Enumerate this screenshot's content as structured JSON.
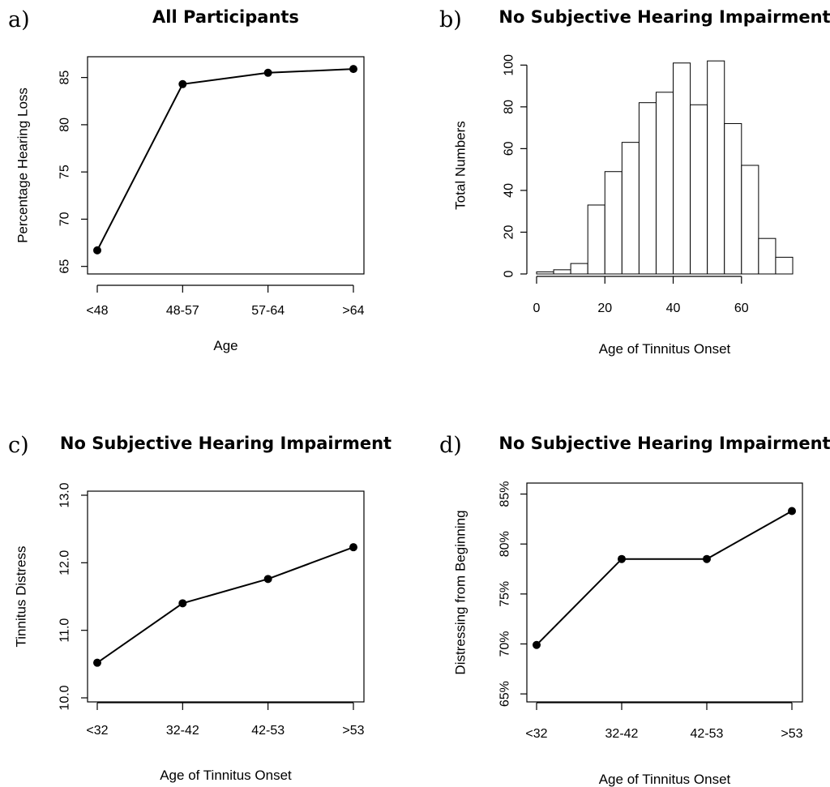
{
  "chart_data": [
    {
      "panel_label": "a)",
      "type": "line",
      "title": "All Participants",
      "xlabel": "Age",
      "ylabel": "Percentage Hearing Loss",
      "categories": [
        "<48",
        "48-57",
        "57-64",
        ">64"
      ],
      "values": [
        66.7,
        84.3,
        85.5,
        85.9
      ],
      "ylim": [
        64.2,
        87.2
      ],
      "yticks": [
        65,
        70,
        75,
        80,
        85
      ],
      "ytick_labels": [
        "65",
        "70",
        "75",
        "80",
        "85"
      ],
      "grid": false
    },
    {
      "panel_label": "b)",
      "type": "bar",
      "subtype": "histogram",
      "title": "No Subjective Hearing Impairment",
      "xlabel": "Age of Tinnitus Onset",
      "ylabel": "Total Numbers",
      "bin_edges": [
        0,
        5,
        10,
        15,
        20,
        25,
        30,
        35,
        40,
        45,
        50,
        55,
        60,
        65,
        70,
        75
      ],
      "values": [
        1,
        2,
        5,
        33,
        49,
        63,
        82,
        87,
        101,
        81,
        102,
        72,
        52,
        17,
        8
      ],
      "xlim": [
        0,
        75
      ],
      "ylim": [
        0,
        104
      ],
      "xticks": [
        0,
        20,
        40,
        60
      ],
      "xtick_labels": [
        "0",
        "20",
        "40",
        "60"
      ],
      "yticks": [
        0,
        20,
        40,
        60,
        80,
        100
      ],
      "ytick_labels": [
        "0",
        "20",
        "40",
        "60",
        "80",
        "100"
      ],
      "grid": false
    },
    {
      "panel_label": "c)",
      "type": "line",
      "title": "No Subjective Hearing Impairment",
      "xlabel": "Age of Tinnitus Onset",
      "ylabel": "Tinnitus Distress",
      "categories": [
        "<32",
        "32-42",
        "42-53",
        ">53"
      ],
      "values": [
        10.52,
        11.4,
        11.76,
        12.23
      ],
      "ylim": [
        9.94,
        13.06
      ],
      "yticks": [
        10,
        11,
        12,
        13
      ],
      "ytick_labels": [
        "10.0",
        "11.0",
        "12.0",
        "13.0"
      ],
      "grid": false
    },
    {
      "panel_label": "d)",
      "type": "line",
      "title": "No Subjective Hearing Impairment",
      "xlabel": "Age of Tinnitus Onset",
      "ylabel": "Distressing from Beginning",
      "categories": [
        "<32",
        "32-42",
        "42-53",
        ">53"
      ],
      "values": [
        69.9,
        78.5,
        78.5,
        83.3
      ],
      "ylim": [
        64.2,
        86.1
      ],
      "yticks": [
        65,
        70,
        75,
        80,
        85
      ],
      "ytick_labels": [
        "65%",
        "70%",
        "75%",
        "80%",
        "85%"
      ],
      "grid": false
    }
  ]
}
